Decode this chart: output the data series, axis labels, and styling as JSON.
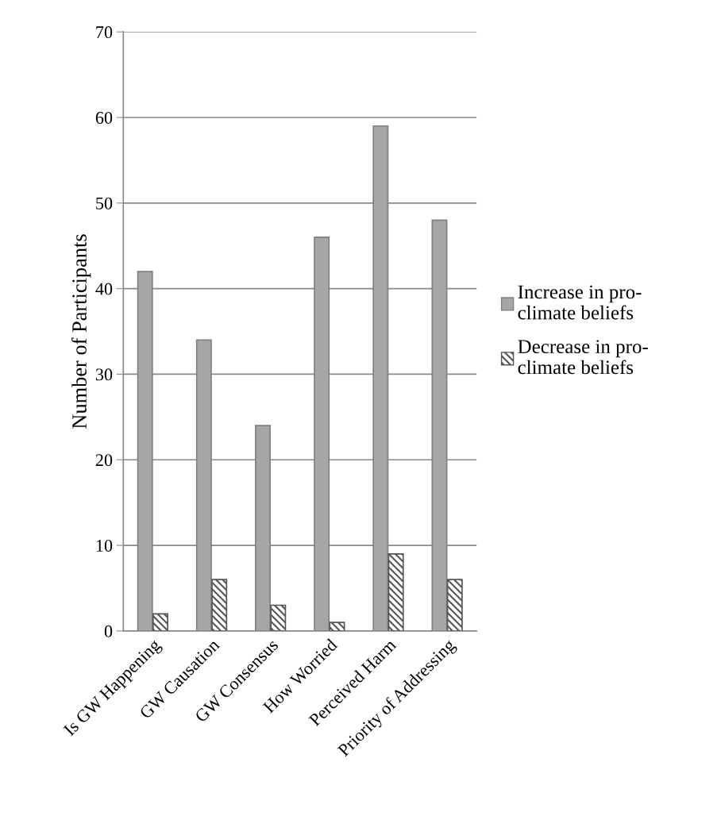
{
  "chart_data": {
    "type": "bar",
    "ylabel": "Number of Participants",
    "categories": [
      "Is GW Happening",
      "GW Causation",
      "GW Consensus",
      "How Worried",
      "Perceived Harm",
      "Priority of Addressing"
    ],
    "series": [
      {
        "name": "Increase in pro-climate beliefs",
        "color": "#a6a6a6",
        "values": [
          42,
          34,
          24,
          46,
          59,
          48
        ]
      },
      {
        "name": "Decrease in pro-climate beliefs",
        "color": "#555555",
        "values": [
          2,
          6,
          3,
          1,
          9,
          6
        ]
      }
    ],
    "ylim": [
      0,
      70
    ],
    "yticks": [
      0,
      10,
      20,
      30,
      40,
      50,
      60,
      70
    ],
    "grid": "y",
    "legend": "right"
  }
}
